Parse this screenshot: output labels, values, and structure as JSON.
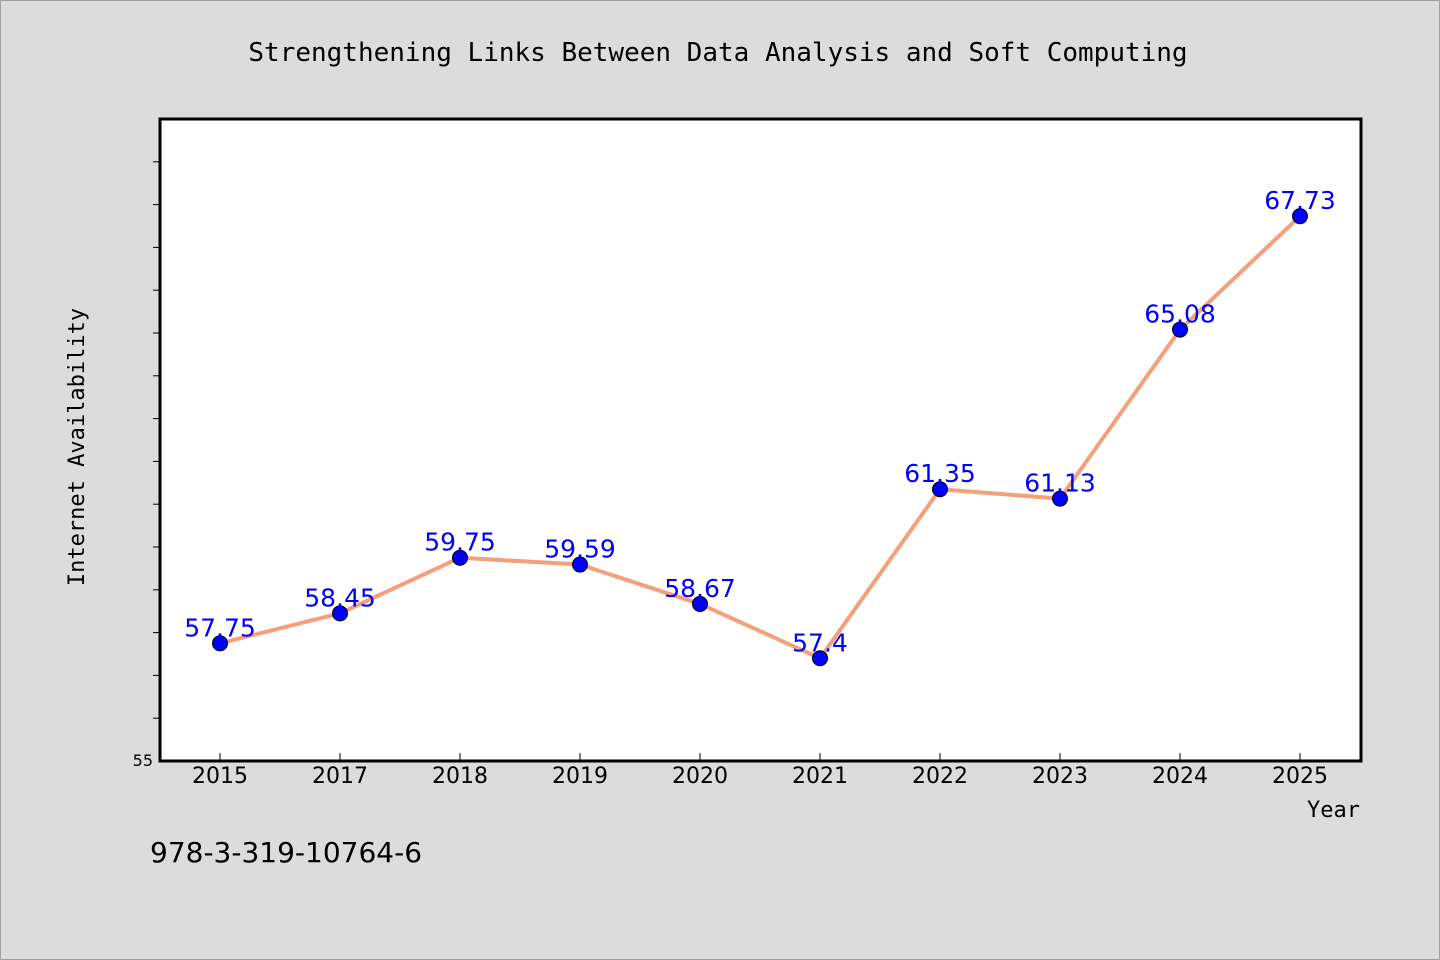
{
  "chart_data": {
    "type": "line",
    "title": "Strengthening Links Between Data Analysis and Soft Computing",
    "xlabel": "Year",
    "ylabel": "Internet Availability",
    "categories": [
      "2015",
      "2017",
      "2018",
      "2019",
      "2020",
      "2021",
      "2022",
      "2023",
      "2024",
      "2025"
    ],
    "series": [
      {
        "values": [
          57.75,
          58.45,
          59.75,
          59.59,
          58.67,
          57.4,
          61.35,
          61.13,
          65.08,
          67.73
        ]
      }
    ],
    "data_labels": [
      "57.75",
      "58.45",
      "59.75",
      "59.59",
      "58.67",
      "57.4",
      "61.35",
      "61.13",
      "65.08",
      "67.73"
    ],
    "ylim": [
      55,
      70
    ],
    "y_tick_labels": [
      "55"
    ],
    "grid": false,
    "legend": "none"
  },
  "footer": {
    "isbn": "978-3-319-10764-6"
  },
  "colors": {
    "line": "#f4a07a",
    "marker": "#0000ff",
    "label": "#0000ff",
    "background": "#dcdcdc",
    "plot_background": "#ffffff"
  }
}
